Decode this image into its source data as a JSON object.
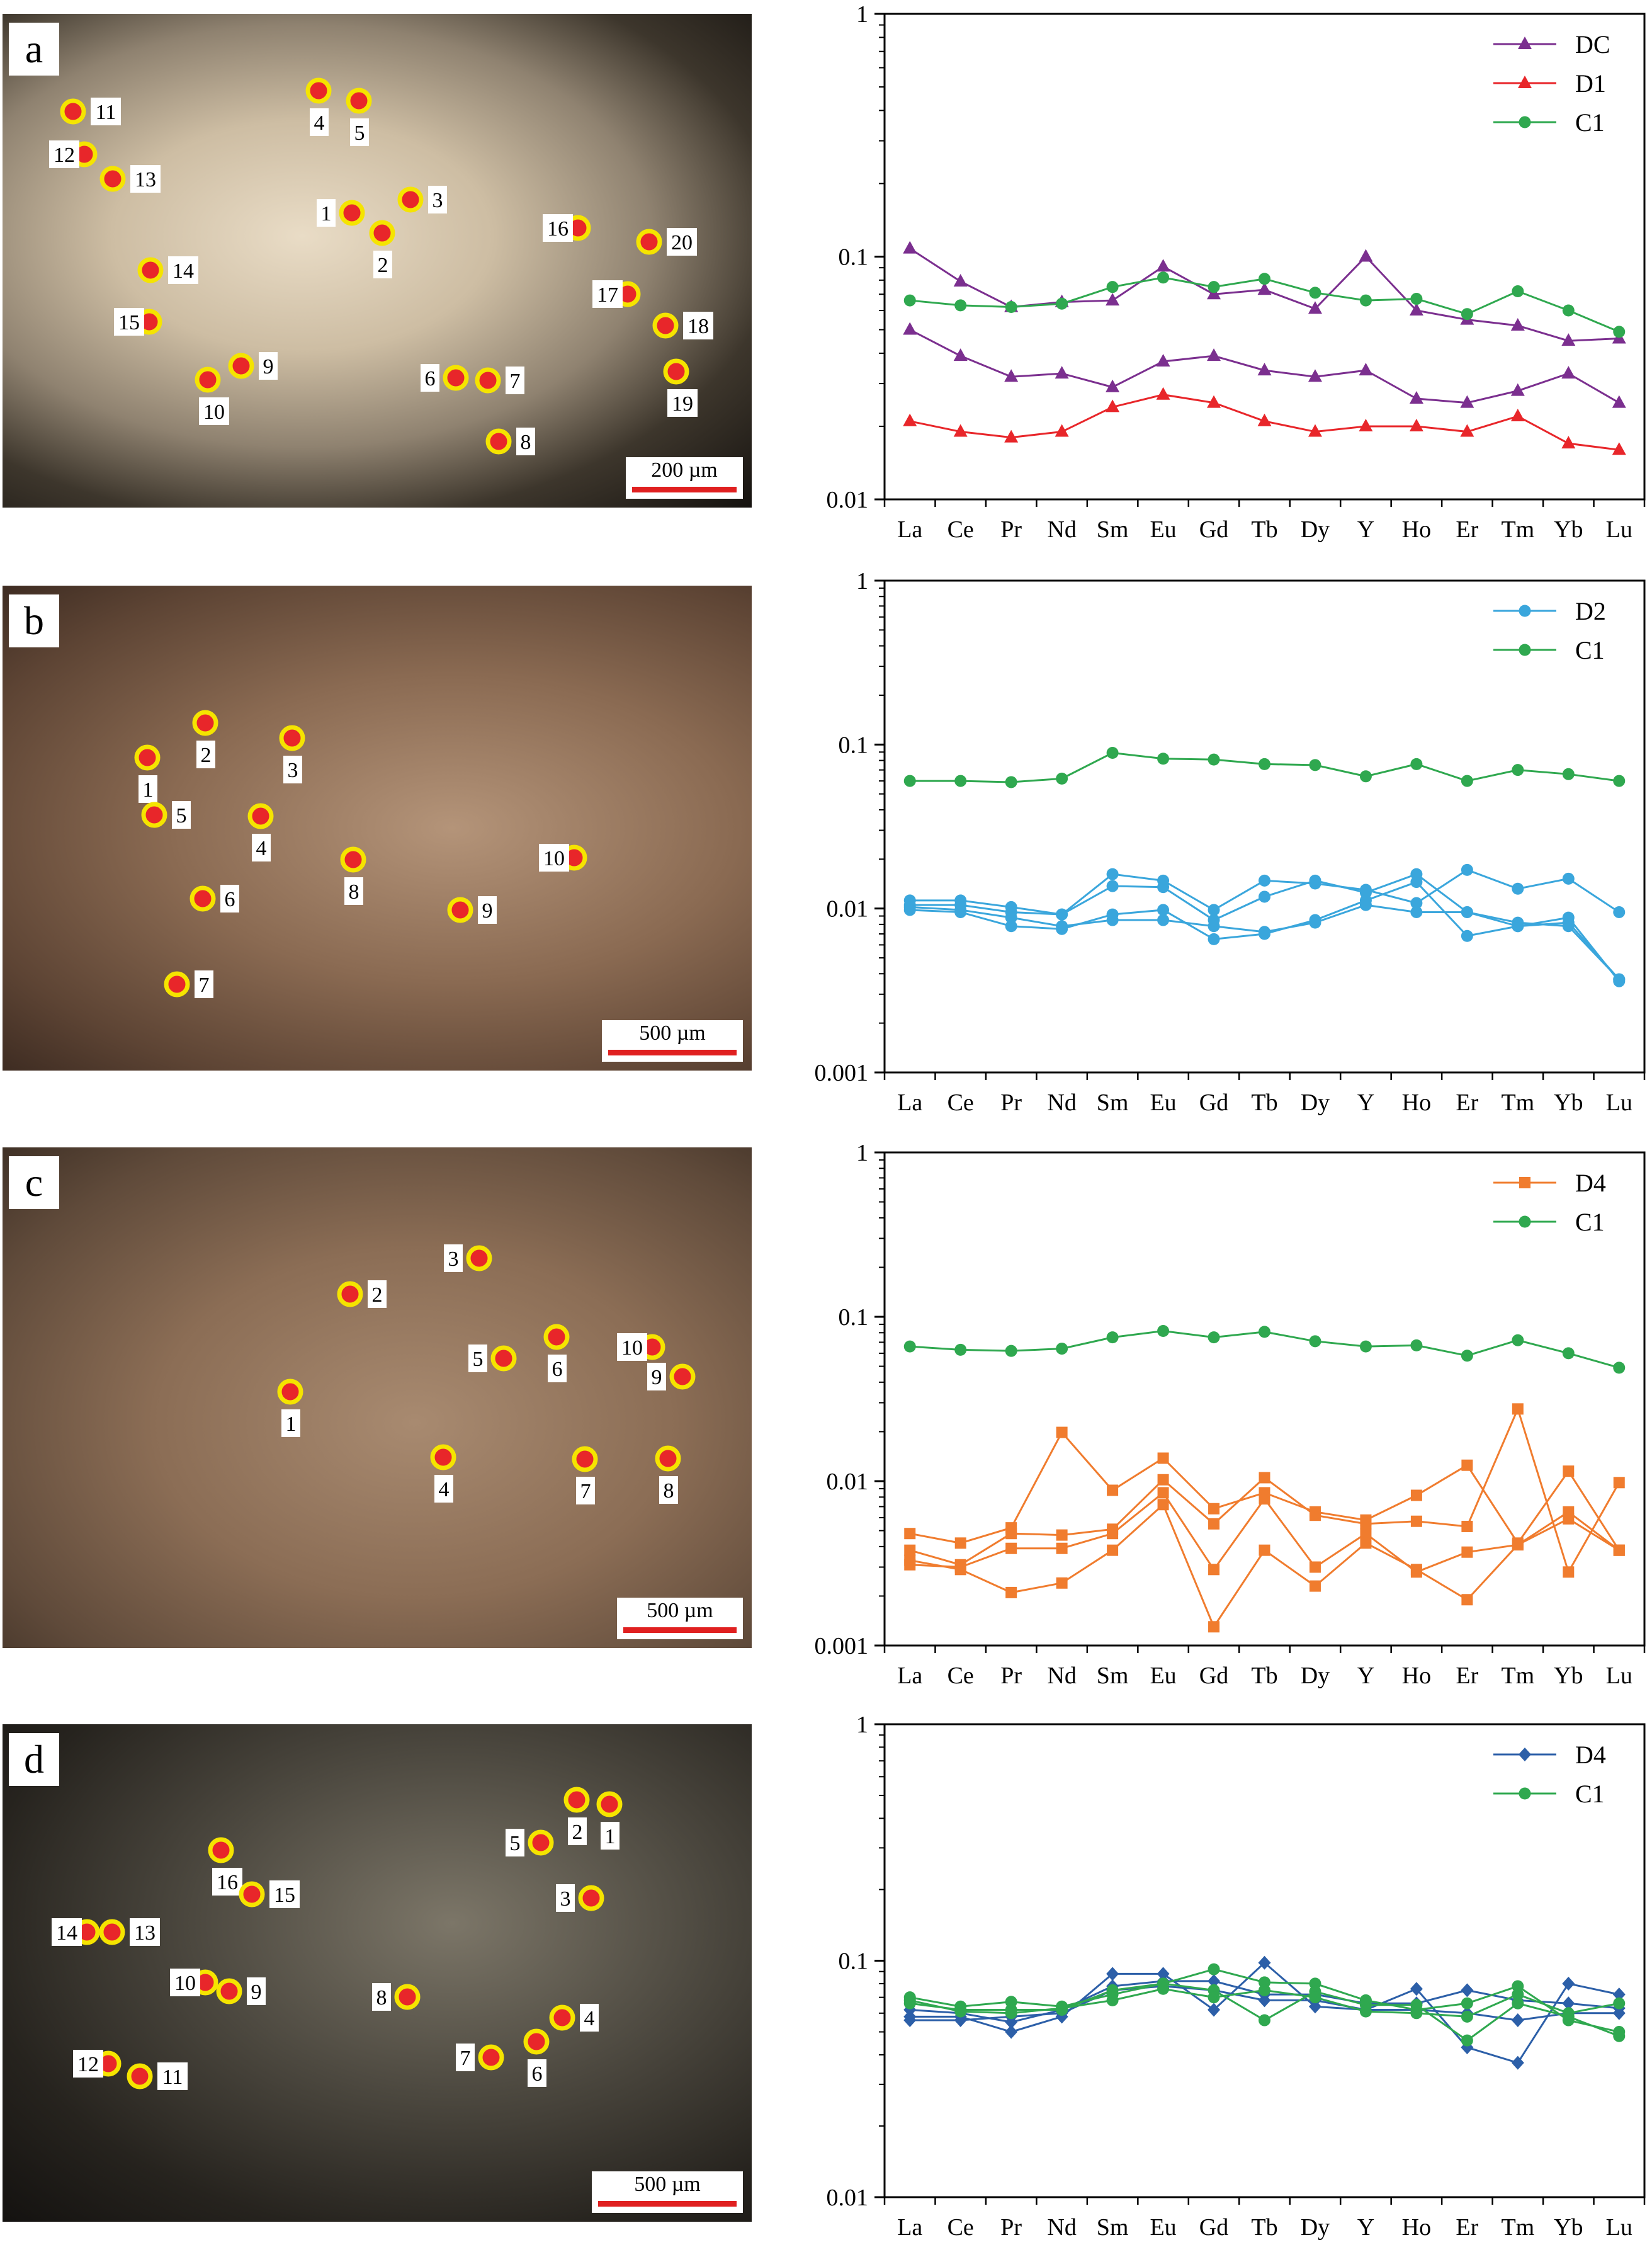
{
  "panels": [
    {
      "label": "a",
      "scale": "200 µm"
    },
    {
      "label": "b",
      "scale": "500 µm"
    },
    {
      "label": "c",
      "scale": "500 µm"
    },
    {
      "label": "d",
      "scale": "500 µm"
    }
  ],
  "colors": {
    "DC": "#7b2f8f",
    "D1": "#e8262a",
    "C1": "#2fa84f",
    "D2": "#3aa6dc",
    "D4_orange": "#f07c2e",
    "D4_blue": "#2c5fa8",
    "spot_fill": "#e8262a",
    "spot_ring": "#f5e400"
  },
  "icons": [
    "analysis-spot-icon"
  ],
  "chart_data": [
    {
      "type": "line",
      "scale": "log",
      "ylim": [
        0.01,
        1
      ],
      "yticks": [
        "1",
        "0.1",
        "0.01"
      ],
      "categories": [
        "La",
        "Ce",
        "Pr",
        "Nd",
        "Sm",
        "Eu",
        "Gd",
        "Tb",
        "Dy",
        "Y",
        "Ho",
        "Er",
        "Tm",
        "Yb",
        "Lu"
      ],
      "legend": "top-right",
      "series": [
        {
          "name": "DC",
          "marker": "triangle",
          "color": "#7b2f8f",
          "values": [
            0.108,
            0.079,
            0.062,
            0.065,
            0.066,
            0.091,
            0.07,
            0.073,
            0.061,
            0.1,
            0.06,
            0.055,
            0.052,
            0.045,
            0.046
          ]
        },
        {
          "name": "",
          "marker": "triangle",
          "color": "#7b2f8f",
          "values": [
            0.05,
            0.039,
            0.032,
            0.033,
            0.029,
            0.037,
            0.039,
            0.034,
            0.032,
            0.034,
            0.026,
            0.025,
            0.028,
            0.033,
            0.025
          ]
        },
        {
          "name": "D1",
          "marker": "triangle",
          "color": "#e8262a",
          "values": [
            0.021,
            0.019,
            0.018,
            0.019,
            0.024,
            0.027,
            0.025,
            0.021,
            0.019,
            0.02,
            0.02,
            0.019,
            0.022,
            0.017,
            0.016
          ]
        },
        {
          "name": "C1",
          "marker": "circle",
          "color": "#2fa84f",
          "values": [
            0.066,
            0.063,
            0.062,
            0.064,
            0.075,
            0.082,
            0.075,
            0.081,
            0.071,
            0.066,
            0.067,
            0.058,
            0.072,
            0.06,
            0.049
          ]
        }
      ]
    },
    {
      "type": "line",
      "scale": "log",
      "ylim": [
        0.001,
        1
      ],
      "yticks": [
        "1",
        "0.1",
        "0.01",
        "0.001"
      ],
      "categories": [
        "La",
        "Ce",
        "Pr",
        "Nd",
        "Sm",
        "Eu",
        "Gd",
        "Tb",
        "Dy",
        "Y",
        "Ho",
        "Er",
        "Tm",
        "Yb",
        "Lu"
      ],
      "legend": "top-right",
      "series": [
        {
          "name": "D2",
          "marker": "circle",
          "color": "#3aa6dc",
          "values": [
            0.0112,
            0.0112,
            0.0102,
            0.0092,
            0.0162,
            0.0148,
            0.0098,
            0.0148,
            0.0142,
            0.013,
            0.0108,
            0.0172,
            0.0132,
            0.0152,
            0.0095
          ]
        },
        {
          "name": "",
          "marker": "circle",
          "color": "#3aa6dc",
          "values": [
            0.0105,
            0.0105,
            0.0095,
            0.0092,
            0.0137,
            0.0135,
            0.0085,
            0.0118,
            0.0148,
            0.0125,
            0.0162,
            0.0095,
            0.0082,
            0.0078,
            0.0037
          ]
        },
        {
          "name": "",
          "marker": "circle",
          "color": "#3aa6dc",
          "values": [
            0.0098,
            0.0095,
            0.0078,
            0.0075,
            0.0092,
            0.0098,
            0.0065,
            0.007,
            0.0085,
            0.0112,
            0.0145,
            0.0068,
            0.0078,
            0.0088,
            0.0036
          ]
        },
        {
          "name": "",
          "marker": "circle",
          "color": "#3aa6dc",
          "values": [
            0.0102,
            0.0098,
            0.0088,
            0.0078,
            0.0085,
            0.0085,
            0.0078,
            0.0072,
            0.0082,
            0.0105,
            0.0095,
            0.0095,
            0.0078,
            0.0082,
            0.0037
          ]
        },
        {
          "name": "C1",
          "marker": "circle",
          "color": "#2fa84f",
          "values": [
            0.06,
            0.06,
            0.059,
            0.062,
            0.089,
            0.082,
            0.081,
            0.076,
            0.075,
            0.064,
            0.076,
            0.06,
            0.07,
            0.066,
            0.06
          ]
        }
      ]
    },
    {
      "type": "line",
      "scale": "log",
      "ylim": [
        0.001,
        1
      ],
      "yticks": [
        "1",
        "0.1",
        "0.01",
        "0.001"
      ],
      "categories": [
        "La",
        "Ce",
        "Pr",
        "Nd",
        "Sm",
        "Eu",
        "Gd",
        "Tb",
        "Dy",
        "Y",
        "Ho",
        "Er",
        "Tm",
        "Yb",
        "Lu"
      ],
      "legend": "top-right",
      "series": [
        {
          "name": "D4",
          "marker": "square",
          "color": "#f07c2e",
          "values": [
            0.0048,
            0.0042,
            0.0052,
            0.0198,
            0.0088,
            0.0138,
            0.0068,
            0.0085,
            0.0065,
            0.0058,
            0.0082,
            0.0125,
            0.0042,
            0.0115,
            0.0038
          ]
        },
        {
          "name": "",
          "marker": "square",
          "color": "#f07c2e",
          "values": [
            0.0038,
            0.0031,
            0.0048,
            0.0047,
            0.0051,
            0.0102,
            0.0055,
            0.0105,
            0.0062,
            0.0055,
            0.0057,
            0.0053,
            0.0275,
            0.0028,
            0.0098
          ]
        },
        {
          "name": "",
          "marker": "square",
          "color": "#f07c2e",
          "values": [
            0.0033,
            0.0029,
            0.0021,
            0.0024,
            0.0038,
            0.0072,
            0.0013,
            0.0038,
            0.0023,
            0.0042,
            0.0029,
            0.0019,
            0.0041,
            0.0065,
            0.0038
          ]
        },
        {
          "name": "",
          "marker": "square",
          "color": "#f07c2e",
          "values": [
            0.0031,
            0.003,
            0.0039,
            0.0039,
            0.0048,
            0.0085,
            0.0029,
            0.0078,
            0.003,
            0.0048,
            0.0028,
            0.0037,
            0.0041,
            0.0059,
            0.0038
          ]
        },
        {
          "name": "C1",
          "marker": "circle",
          "color": "#2fa84f",
          "values": [
            0.066,
            0.063,
            0.062,
            0.064,
            0.075,
            0.082,
            0.075,
            0.081,
            0.071,
            0.066,
            0.067,
            0.058,
            0.072,
            0.06,
            0.049
          ]
        }
      ]
    },
    {
      "type": "line",
      "scale": "log",
      "ylim": [
        0.01,
        1
      ],
      "yticks": [
        "1",
        "0.1",
        "0.01"
      ],
      "categories": [
        "La",
        "Ce",
        "Pr",
        "Nd",
        "Sm",
        "Eu",
        "Gd",
        "Tb",
        "Dy",
        "Y",
        "Ho",
        "Er",
        "Tm",
        "Yb",
        "Lu"
      ],
      "legend": "top-right",
      "series": [
        {
          "name": "D4",
          "marker": "diamond",
          "color": "#2c5fa8",
          "values": [
            0.058,
            0.058,
            0.05,
            0.058,
            0.088,
            0.088,
            0.062,
            0.098,
            0.064,
            0.062,
            0.076,
            0.043,
            0.037,
            0.08,
            0.072
          ]
        },
        {
          "name": "",
          "marker": "diamond",
          "color": "#2c5fa8",
          "values": [
            0.062,
            0.06,
            0.055,
            0.062,
            0.078,
            0.082,
            0.082,
            0.072,
            0.072,
            0.066,
            0.066,
            0.075,
            0.068,
            0.066,
            0.063
          ]
        },
        {
          "name": "",
          "marker": "diamond",
          "color": "#2c5fa8",
          "values": [
            0.056,
            0.056,
            0.058,
            0.06,
            0.075,
            0.078,
            0.075,
            0.068,
            0.068,
            0.062,
            0.062,
            0.06,
            0.056,
            0.06,
            0.06
          ]
        },
        {
          "name": "C1",
          "marker": "circle",
          "color": "#2fa84f",
          "values": [
            0.07,
            0.064,
            0.067,
            0.064,
            0.072,
            0.08,
            0.092,
            0.081,
            0.08,
            0.068,
            0.062,
            0.066,
            0.078,
            0.056,
            0.05
          ]
        },
        {
          "name": "",
          "marker": "circle",
          "color": "#2fa84f",
          "values": [
            0.066,
            0.062,
            0.062,
            0.062,
            0.075,
            0.08,
            0.075,
            0.056,
            0.074,
            0.065,
            0.065,
            0.046,
            0.066,
            0.058,
            0.048
          ]
        },
        {
          "name": "",
          "marker": "circle",
          "color": "#2fa84f",
          "values": [
            0.068,
            0.061,
            0.06,
            0.063,
            0.068,
            0.076,
            0.07,
            0.075,
            0.07,
            0.061,
            0.06,
            0.058,
            0.072,
            0.06,
            0.066
          ]
        }
      ]
    }
  ]
}
